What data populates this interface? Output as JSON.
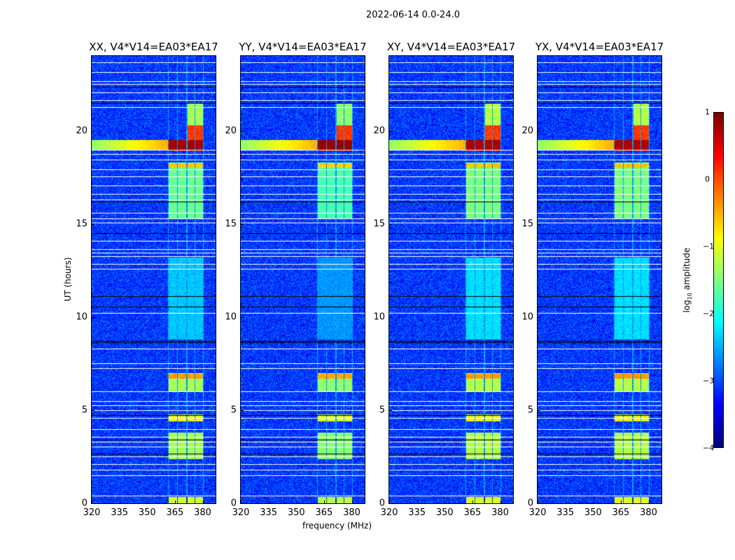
{
  "chart_data": {
    "type": "heatmap",
    "title": "2022-06-14 0.0-24.0",
    "xlabel": "frequency (MHz)",
    "ylabel": "UT (hours)",
    "xlim": [
      320,
      387
    ],
    "ylim": [
      0,
      24
    ],
    "xticks": [
      "320",
      "335",
      "350",
      "365",
      "380"
    ],
    "xtick_values": [
      320,
      335,
      350,
      365,
      380
    ],
    "yticks": [
      "0",
      "5",
      "10",
      "15",
      "20"
    ],
    "ytick_values": [
      0,
      5,
      10,
      15,
      20
    ],
    "panels": [
      {
        "title": "XX, V4*V14=EA03*EA17",
        "scale": 1.0
      },
      {
        "title": "YY, V4*V14=EA03*EA17",
        "scale": 1.1
      },
      {
        "title": "XY, V4*V14=EA03*EA17",
        "scale": 0.95
      },
      {
        "title": "YX, V4*V14=EA03*EA17",
        "scale": 0.95
      }
    ],
    "colorbar": {
      "label": "log10 amplitude",
      "label_main": "log",
      "label_sub": "10",
      "label_tail": " amplitude",
      "range": [
        -4,
        1
      ],
      "ticks": [
        "1",
        "0",
        "−1",
        "−2",
        "−3",
        "−4"
      ],
      "tick_values": [
        1,
        0,
        -1,
        -2,
        -3,
        -4
      ],
      "colormap": "jet"
    },
    "background_level": -3.1,
    "rfi_subbands_mhz": [
      [
        361.5,
        366
      ],
      [
        366.5,
        371
      ],
      [
        371.5,
        375.5
      ],
      [
        376,
        380
      ]
    ],
    "rfi_events": [
      {
        "t": [
          0.0,
          0.35
        ],
        "level": -1.1
      },
      {
        "t": [
          2.4,
          3.8
        ],
        "level": -1.3
      },
      {
        "t": [
          4.4,
          4.8
        ],
        "level": -0.9
      },
      {
        "t": [
          6.0,
          7.0
        ],
        "level": -1.3
      },
      {
        "t": [
          6.7,
          6.95
        ],
        "level": -0.4
      },
      {
        "t": [
          15.3,
          18.3
        ],
        "level": -1.6
      },
      {
        "t": [
          18.0,
          18.25
        ],
        "level": -0.6
      },
      {
        "t": [
          18.9,
          19.5
        ],
        "level": 0.8
      },
      {
        "t": [
          19.5,
          20.3
        ],
        "level": 0.1,
        "bands": [
          2,
          3
        ]
      },
      {
        "t": [
          20.3,
          21.5
        ],
        "level": -1.3,
        "bands": [
          2,
          3
        ]
      },
      {
        "t": [
          8.8,
          13.2
        ],
        "level": -2.4
      }
    ],
    "broadband_events": [
      {
        "t": [
          19.0,
          19.5
        ],
        "level": -0.8,
        "f": [
          320,
          361
        ]
      }
    ],
    "flagged_hours_white": [
      0.42,
      1.5,
      1.8,
      2.1,
      2.5,
      3.05,
      3.3,
      3.55,
      4.0,
      4.6,
      5.0,
      5.25,
      5.5,
      6.0,
      7.25,
      7.5,
      8.3,
      10.2,
      12.6,
      12.85,
      13.25,
      13.45,
      13.65,
      14.1,
      15.05,
      15.3,
      15.6,
      16.3,
      16.6,
      17.05,
      17.55,
      17.9,
      18.45,
      18.75,
      18.95,
      21.25,
      21.65,
      22.05,
      22.5,
      22.65,
      23.15,
      23.65
    ],
    "flagged_hours_black": [
      2.65,
      3.4,
      4.75,
      8.65,
      8.7,
      10.55,
      11.1,
      14.5,
      16.2,
      21.5,
      22.35
    ]
  }
}
